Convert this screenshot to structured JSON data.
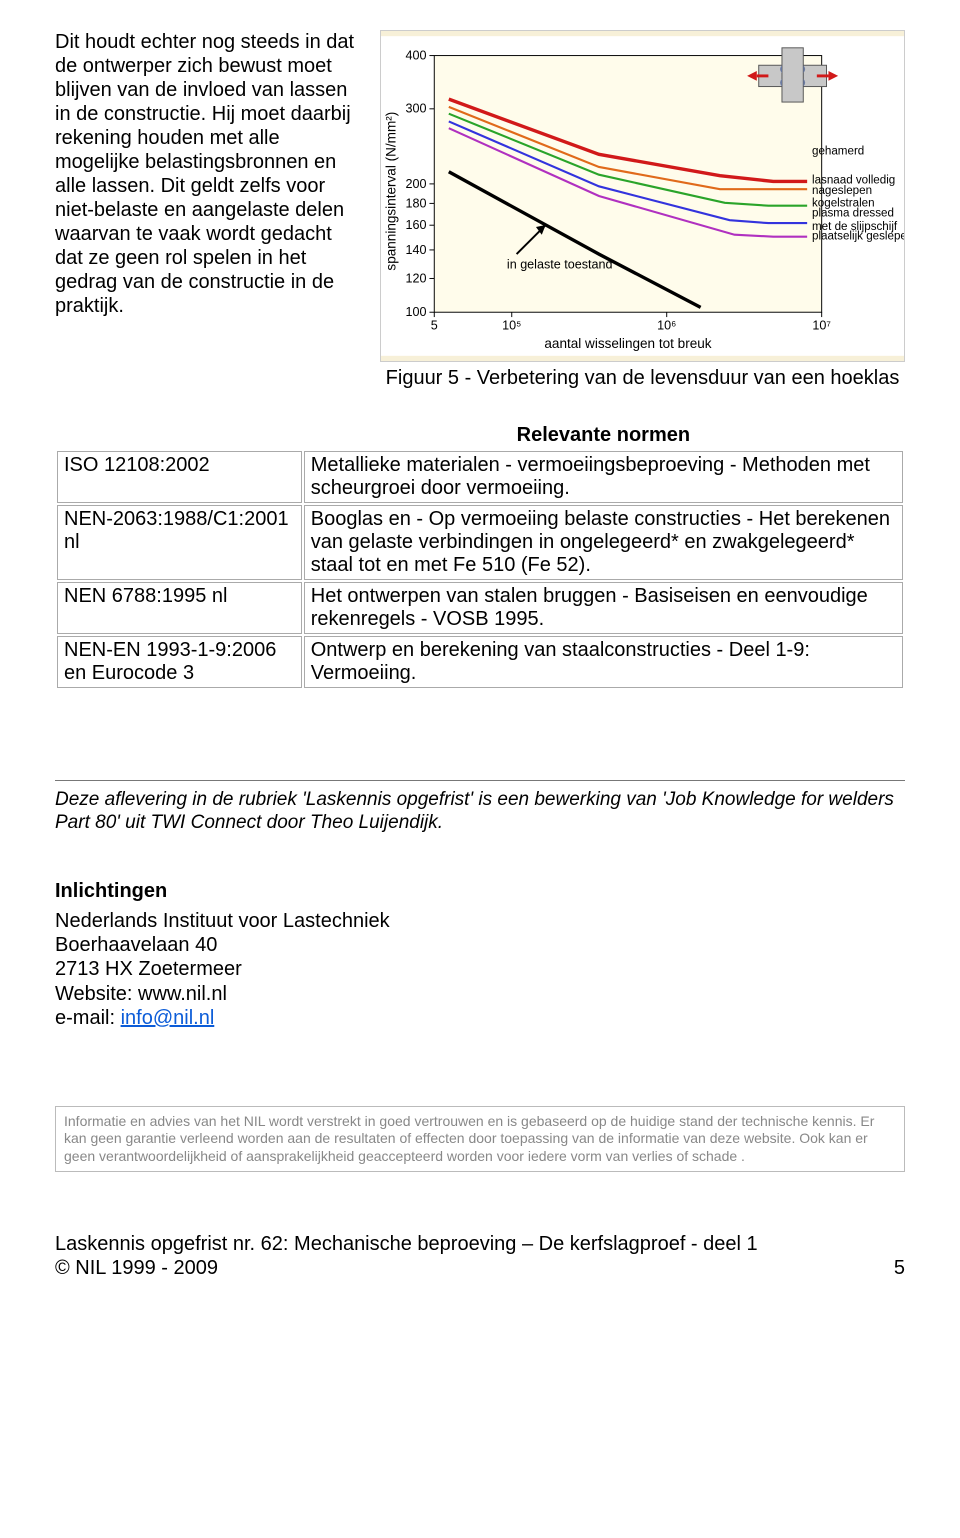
{
  "intro_text": "Dit houdt echter nog steeds in dat de ontwerper zich bewust moet blijven van de invloed van lassen in de constructie. Hij moet daarbij rekening houden met alle mogelijke belastingsbronnen en alle lassen. Dit geldt zelfs voor niet-belaste en aangelaste delen waarvan te vaak wordt gedacht dat ze geen rol spelen in het gedrag van de constructie in de praktijk.",
  "figure5": {
    "caption": "Figuur 5 - Verbetering van de levensduur van een hoeklas",
    "y_label": "spanningsinterval (N/mm²)",
    "x_label": "aantal wisselingen tot breuk",
    "y_ticks": [
      "400",
      "300",
      "200",
      "180",
      "160",
      "140",
      "120",
      "100"
    ],
    "x_ticks": [
      "5",
      "10⁵",
      "10⁶",
      "10⁷"
    ],
    "arrow_label": "in gelaste toestand",
    "legend": [
      {
        "text": "gehamerd",
        "color": "#d11919"
      },
      {
        "text": "lasnaad volledig",
        "color": "#e06a1a"
      },
      {
        "text": "nageslepen",
        "color": "#e06a1a"
      },
      {
        "text": "kogelstralen",
        "color": "#2aa42a"
      },
      {
        "text": "plasma dressed",
        "color": "#2aa42a"
      },
      {
        "text": "met de slijpschijf",
        "color": "#3333dd"
      },
      {
        "text": "plaatselijk geslepen",
        "color": "#b030c0"
      }
    ],
    "series": [
      {
        "color": "#d11919",
        "width": 3.5,
        "pts": [
          [
            70,
            65
          ],
          [
            225,
            122
          ],
          [
            350,
            144
          ],
          [
            405,
            150
          ],
          [
            440,
            150
          ]
        ]
      },
      {
        "color": "#e06a1a",
        "width": 2.2,
        "pts": [
          [
            70,
            73
          ],
          [
            225,
            135
          ],
          [
            350,
            158
          ],
          [
            395,
            158
          ],
          [
            440,
            158
          ]
        ]
      },
      {
        "color": "#2aa42a",
        "width": 2.2,
        "pts": [
          [
            70,
            80
          ],
          [
            225,
            143
          ],
          [
            355,
            172
          ],
          [
            400,
            175
          ],
          [
            440,
            175
          ]
        ]
      },
      {
        "color": "#3333dd",
        "width": 2.2,
        "pts": [
          [
            70,
            88
          ],
          [
            225,
            155
          ],
          [
            360,
            190
          ],
          [
            400,
            193
          ],
          [
            440,
            193
          ]
        ]
      },
      {
        "color": "#b030c0",
        "width": 2.2,
        "pts": [
          [
            70,
            95
          ],
          [
            225,
            165
          ],
          [
            365,
            205
          ],
          [
            405,
            207
          ],
          [
            440,
            207
          ]
        ]
      },
      {
        "color": "#000000",
        "width": 3.5,
        "pts": [
          [
            70,
            140
          ],
          [
            225,
            225
          ],
          [
            330,
            280
          ]
        ]
      }
    ],
    "chart_bg": "#fffceb",
    "plot_bg": "#f7f0d8",
    "axis_color": "#000000",
    "text_color": "#000000",
    "fontsize_axis": 13,
    "fontsize_label": 14
  },
  "table": {
    "title": "Relevante normen",
    "rows": [
      {
        "l": "ISO 12108:2002",
        "r": "Metallieke materialen - vermoeiingsbeproeving - Methoden met scheurgroei door vermoeiing."
      },
      {
        "l": "NEN-2063:1988/C1:2001 nl",
        "r": "Booglas en - Op vermoeiing belaste constructies - Het berekenen van gelaste verbindingen in ongelegeerd* en zwakgelegeerd* staal tot en met Fe 510 (Fe 52)."
      },
      {
        "l": "NEN 6788:1995 nl",
        "r": "Het ontwerpen van stalen bruggen - Basiseisen en eenvoudige rekenregels - VOSB 1995."
      },
      {
        "l": "NEN-EN 1993-1-9:2006 en Eurocode 3",
        "r": "Ontwerp en berekening van staalconstructies - Deel 1-9: Vermoeiing."
      }
    ]
  },
  "rubric_text": "Deze aflevering in de rubriek 'Laskennis opgefrist' is een bewerking van 'Job Knowledge for welders Part 80' uit TWI Connect door Theo Luijendijk.",
  "contact": {
    "heading": "Inlichtingen",
    "name": "Nederlands Instituut voor Lastechniek",
    "address": "Boerhaavelaan 40",
    "postal": "2713 HX Zoetermeer",
    "website_label": "Website: www.nil.nl",
    "email_label": "e-mail: ",
    "email": "info@nil.nl"
  },
  "disclaimer": "Informatie en advies van het NIL wordt verstrekt in goed vertrouwen en is gebaseerd op de huidige stand der technische kennis. Er kan geen garantie verleend  worden aan de resultaten of effecten door toepassing van de informatie van deze website. Ook kan er geen verantwoordelijkheid of aansprakelijkheid geaccepteerd worden voor iedere vorm van verlies of schade .",
  "footer": {
    "line1": "Laskennis opgefrist nr. 62: Mechanische beproeving – De kerfslagproef - deel 1",
    "line2": "© NIL 1999 - 2009",
    "page": "5"
  }
}
